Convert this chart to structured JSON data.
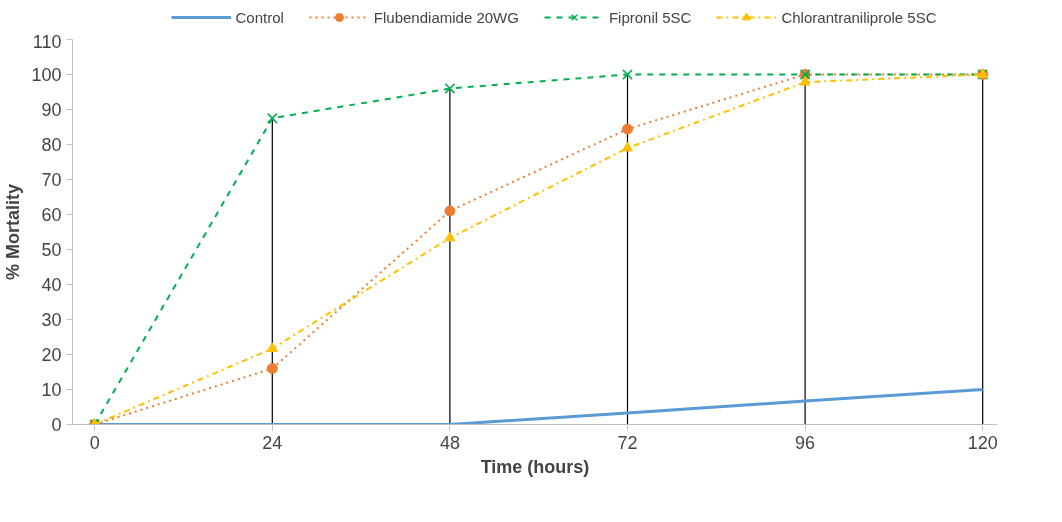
{
  "chart_data": {
    "type": "line",
    "xlabel": "Time (hours)",
    "ylabel": "% Mortality",
    "x": [
      0,
      24,
      48,
      72,
      96,
      120
    ],
    "series": [
      {
        "name": "Control",
        "color": "#5b9bd5",
        "values": [
          0,
          0,
          0,
          3.3,
          6.7,
          10
        ],
        "marker": "none",
        "line_style": "solid"
      },
      {
        "name": "Flubendiamide 20WG",
        "color": "#ed7d31",
        "values": [
          0,
          16,
          61,
          84.4,
          100,
          100
        ],
        "marker": "circle",
        "line_style": "dotted"
      },
      {
        "name": "Fipronil 5SC",
        "color": "#00b050",
        "values": [
          0,
          87.5,
          96,
          100,
          100,
          100
        ],
        "marker": "cross",
        "line_style": "dashed"
      },
      {
        "name": "Chlorantraniliprole 5SC",
        "color": "#ffc000",
        "values": [
          0,
          21.7,
          53.3,
          79,
          97.8,
          100
        ],
        "marker": "triangle",
        "line_style": "dashdot"
      }
    ],
    "xlim": [
      -3,
      122
    ],
    "xticks": [
      0,
      24,
      48,
      72,
      96,
      120
    ],
    "ylim": [
      0,
      110
    ],
    "yticks": [
      0,
      10,
      20,
      30,
      40,
      50,
      60,
      70,
      80,
      90,
      100,
      110
    ],
    "ref_lines": [
      {
        "axis": "x",
        "value": 24,
        "color": "#000000"
      },
      {
        "axis": "x",
        "value": 48,
        "color": "#000000"
      },
      {
        "axis": "x",
        "value": 72,
        "color": "#000000"
      },
      {
        "axis": "x",
        "value": 96,
        "color": "#000000"
      },
      {
        "axis": "x",
        "value": 120,
        "color": "#000000"
      }
    ],
    "grid": false,
    "legend": "top"
  }
}
